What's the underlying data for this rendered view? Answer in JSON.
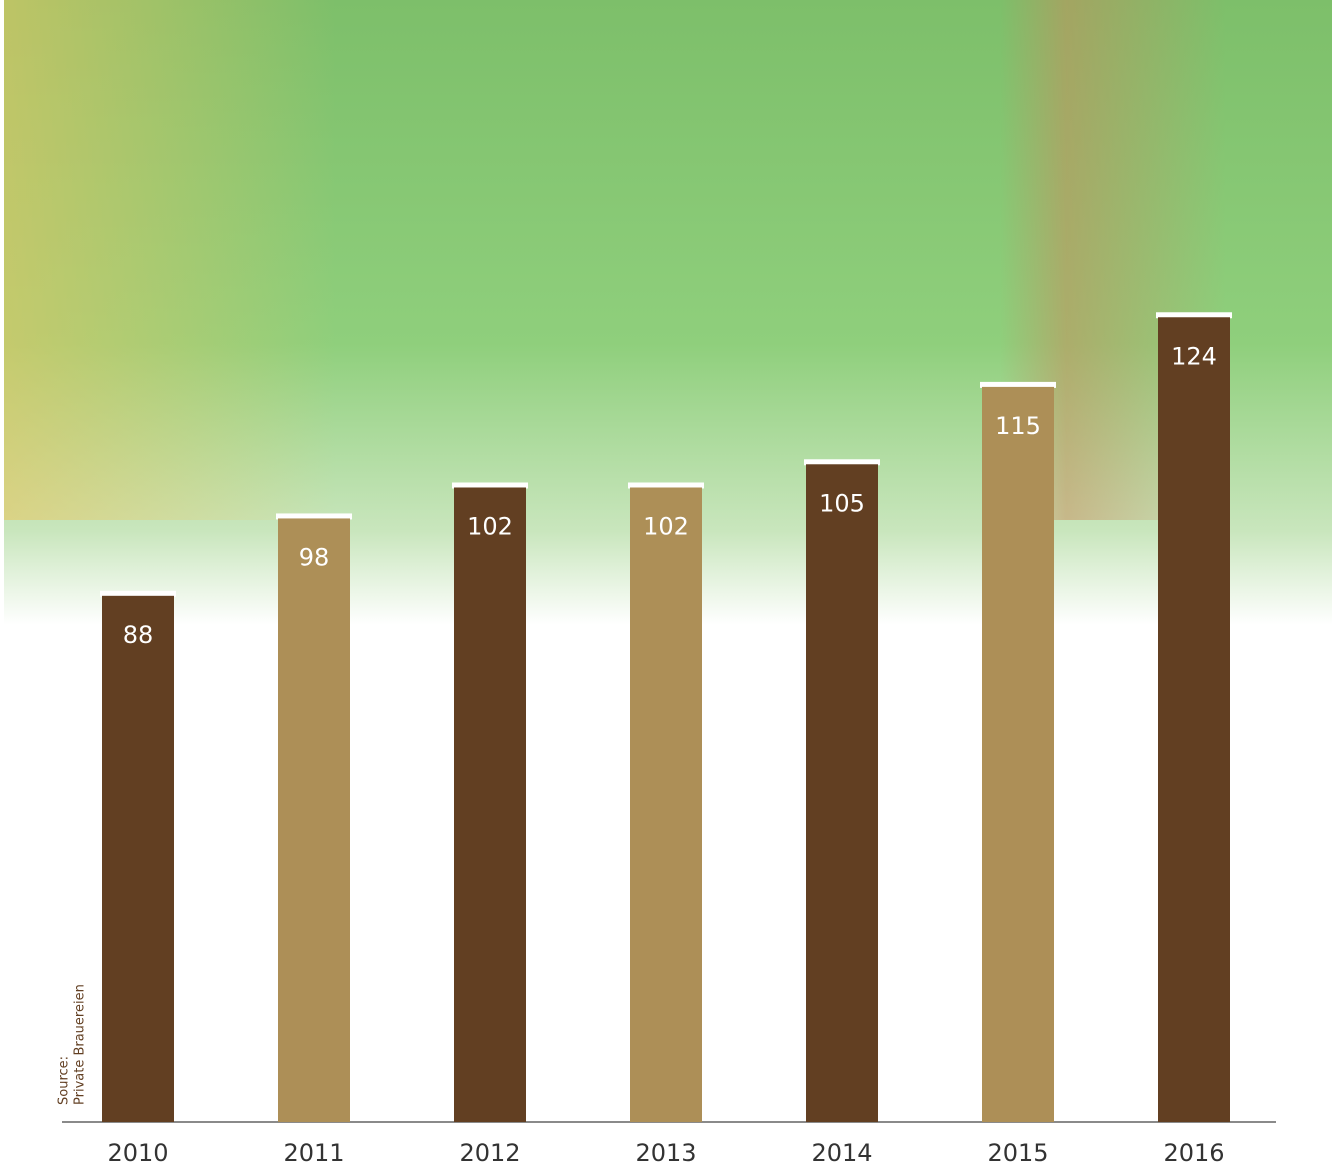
{
  "chart_data": {
    "type": "bar",
    "categories": [
      "2010",
      "2011",
      "2012",
      "2013",
      "2014",
      "2015",
      "2016"
    ],
    "values": [
      88,
      98,
      102,
      102,
      105,
      115,
      124
    ],
    "colors": [
      "#623f22",
      "#ad8f57",
      "#623f22",
      "#ad8f57",
      "#623f22",
      "#ad8f57",
      "#623f22"
    ],
    "ylim": [
      20,
      165
    ],
    "source_label": "Source:",
    "source": "Private Brauereien"
  }
}
